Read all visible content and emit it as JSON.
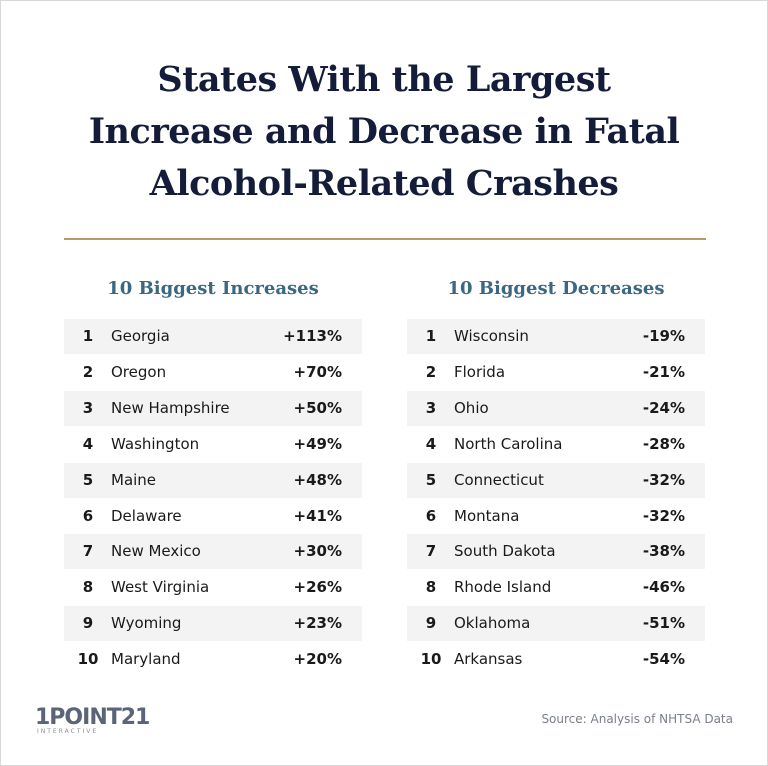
{
  "header": {
    "title_lines": [
      "States With the Largest",
      "Increase and Decrease in Fatal",
      "Alcohol-Related Crashes"
    ]
  },
  "tables": [
    {
      "heading": "10 Biggest Increases",
      "rows": [
        [
          1,
          "Georgia",
          "+113%"
        ],
        [
          2,
          "Oregon",
          "+70%"
        ],
        [
          3,
          "New Hampshire",
          "+50%"
        ],
        [
          4,
          "Washington",
          "+49%"
        ],
        [
          5,
          "Maine",
          "+48%"
        ],
        [
          6,
          "Delaware",
          "+41%"
        ],
        [
          7,
          "New Mexico",
          "+30%"
        ],
        [
          8,
          "West Virginia",
          "+26%"
        ],
        [
          9,
          "Wyoming",
          "+23%"
        ],
        [
          10,
          "Maryland",
          "+20%"
        ]
      ]
    },
    {
      "heading": "10 Biggest Decreases",
      "rows": [
        [
          1,
          "Wisconsin",
          "-19%"
        ],
        [
          2,
          "Florida",
          "-21%"
        ],
        [
          3,
          "Ohio",
          "-24%"
        ],
        [
          4,
          "North Carolina",
          "-28%"
        ],
        [
          5,
          "Connecticut",
          "-32%"
        ],
        [
          6,
          "Montana",
          "-32%"
        ],
        [
          7,
          "South Dakota",
          "-38%"
        ],
        [
          8,
          "Rhode Island",
          "-46%"
        ],
        [
          9,
          "Oklahoma",
          "-51%"
        ],
        [
          10,
          "Arkansas",
          "-54%"
        ]
      ]
    }
  ],
  "footer": {
    "logo": "1POINT21",
    "logo_sub": "INTERACTIVE",
    "source": "Source: Analysis of NHTSA Data"
  }
}
